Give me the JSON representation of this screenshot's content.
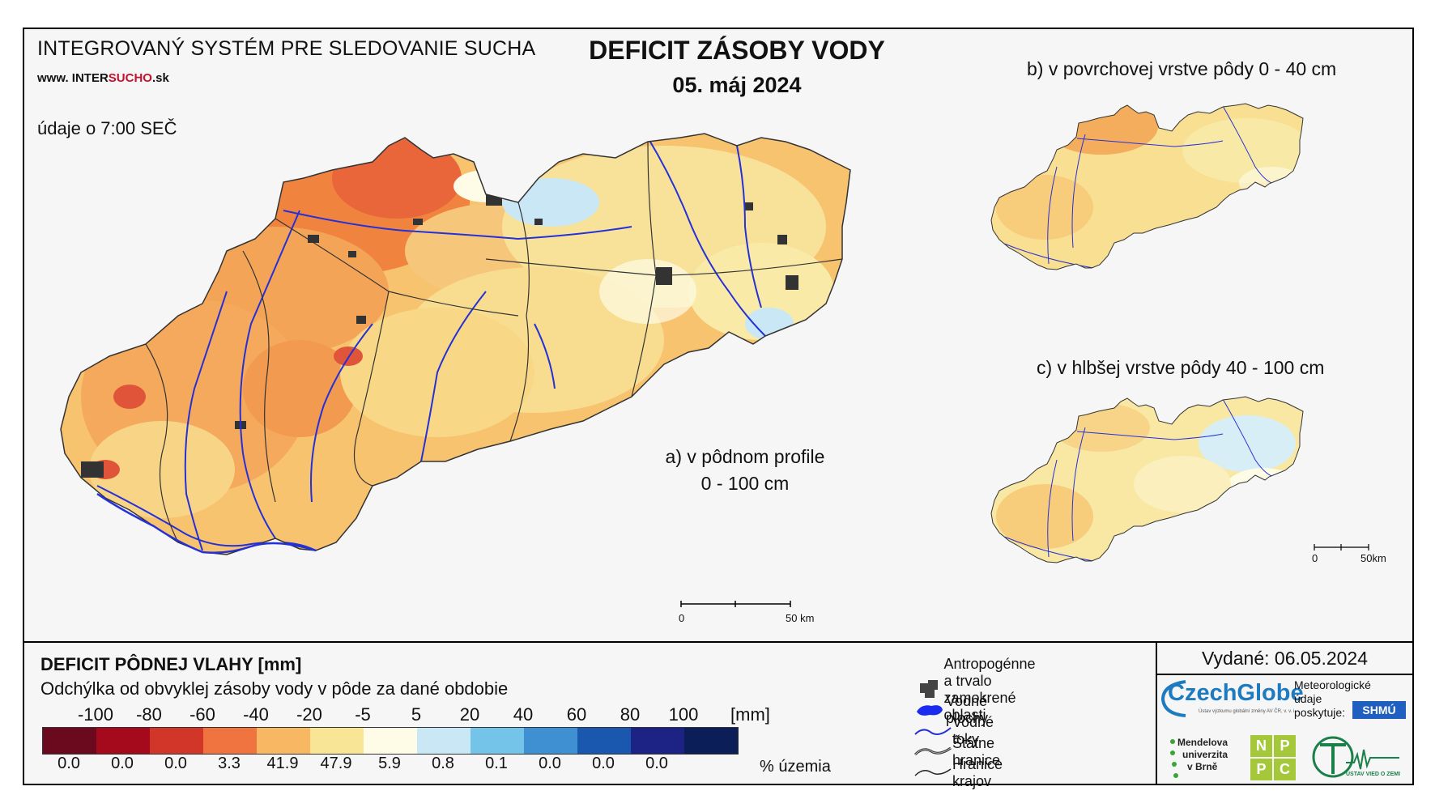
{
  "header": {
    "system_name": "INTEGROVANÝ SYSTÉM PRE SLEDOVANIE SUCHA",
    "website_prefix": "www. INTER",
    "website_accent": "SUCHO",
    "website_suffix": ".sk",
    "data_time": "údaje o 7:00 SEČ",
    "title": "DEFICIT ZÁSOBY VODY",
    "date": "05. máj 2024"
  },
  "maps": {
    "a_label_line1": "a) v pôdnom profile",
    "a_label_line2": "0 - 100 cm",
    "b_label": "b) v povrchovej vrstve pôdy 0 - 40 cm",
    "c_label": "c) v hlbšej vrstve pôdy 40 - 100 cm",
    "scale_main": {
      "start": "0",
      "end": "50 km"
    },
    "scale_small": {
      "start": "0",
      "end": "50km"
    }
  },
  "legend": {
    "title": "DEFICIT PÔDNEJ VLAHY [mm]",
    "subtitle": "Odchýlka od obvyklej zásoby vody v pôde za dané obdobie",
    "ticks": [
      "-100",
      "-80",
      "-60",
      "-40",
      "-20",
      "-5",
      "5",
      "20",
      "40",
      "60",
      "80",
      "100"
    ],
    "unit": "[mm]",
    "colors": [
      "#6b0a1e",
      "#a5091c",
      "#d23629",
      "#f0743f",
      "#f7b763",
      "#f8e696",
      "#fefce6",
      "#c9e7f5",
      "#74c4ea",
      "#3f90d2",
      "#1a58b0",
      "#1d2385",
      "#0c1e57"
    ],
    "percentages": [
      "0.0",
      "0.0",
      "0.0",
      "3.3",
      "41.9",
      "47.9",
      "5.9",
      "0.8",
      "0.1",
      "0.0",
      "0.0",
      "0.0"
    ],
    "percent_label": "% územia"
  },
  "map_legend": {
    "urban": "Antropogénne a trvalo zamokrené oblasti",
    "urban_line1": "Antropogénne a trvalo",
    "urban_line2": "zamokrené oblasti",
    "water": "Vodné plochy",
    "rivers": "Vodné toky",
    "state_border": "Štátne hranice",
    "region_border": "Hranice krajov"
  },
  "footer": {
    "issued": "Vydané: 06.05.2024",
    "czechglobe": "CzechGlobe",
    "czechglobe_sub": "Ústav výzkumu globální změny AV ČR, v. v. i.",
    "meteo_line1": "Meteorologické",
    "meteo_line2": "údaje",
    "meteo_line3": "poskytuje:",
    "shmu": "SHMÚ",
    "mendel_line1": "Mendelova",
    "mendel_line2": "univerzita",
    "mendel_line3": "v Brně",
    "nppc": [
      "N",
      "P",
      "P",
      "C"
    ],
    "uvz": "ÚSTAV VIED O ZEMI"
  }
}
